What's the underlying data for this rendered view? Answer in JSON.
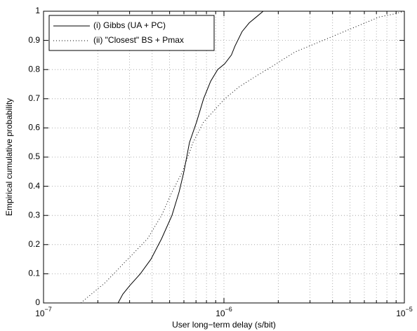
{
  "chart_data": {
    "type": "line",
    "xlabel": "User long−term delay (s/bit)",
    "ylabel": "Empirical cumulative probability",
    "xscale": "log",
    "grid": true,
    "legend_loc": "upper left",
    "xlim": [
      1e-07,
      1e-05
    ],
    "xticks": [
      {
        "value": 1e-07,
        "label": "10−7"
      },
      {
        "value": 1e-06,
        "label": "10−6"
      },
      {
        "value": 1e-05,
        "label": "10−5"
      }
    ],
    "xminorticks": [
      2e-07,
      3e-07,
      4e-07,
      5e-07,
      6e-07,
      7e-07,
      8e-07,
      9e-07,
      2e-06,
      3e-06,
      4e-06,
      5e-06,
      6e-06,
      7e-06,
      8e-06,
      9e-06
    ],
    "ylim": [
      0,
      1
    ],
    "yticks": [
      0,
      0.1,
      0.2,
      0.3,
      0.4,
      0.5,
      0.6,
      0.7,
      0.8,
      0.9,
      1
    ],
    "series": [
      {
        "name": "(i) Gibbs (UA + PC)",
        "color": "#000000",
        "style": "solid",
        "x": [
          2.59e-07,
          2.75e-07,
          3.01e-07,
          3.44e-07,
          3.94e-07,
          4.51e-07,
          5.15e-07,
          5.64e-07,
          6e-07,
          6.44e-07,
          7.05e-07,
          7.71e-07,
          8.44e-07,
          9.23e-07,
          1.01e-06,
          1.1e-06,
          1.15e-06,
          1.26e-06,
          1.38e-06,
          1.51e-06,
          1.65e-06,
          1.81e-06
        ],
        "values": [
          0,
          0.03,
          0.06,
          0.1,
          0.15,
          0.22,
          0.3,
          0.38,
          0.45,
          0.55,
          0.62,
          0.7,
          0.76,
          0.8,
          0.82,
          0.85,
          0.88,
          0.93,
          0.96,
          0.98,
          1.0,
          1.0
        ]
      },
      {
        "name": "(ii) \"Closest\" BS + Pmax",
        "color": "#000000",
        "style": "dotted",
        "x": [
          1.61e-07,
          1.84e-07,
          2.2e-07,
          2.63e-07,
          3.15e-07,
          3.77e-07,
          4.51e-07,
          5.15e-07,
          5.89e-07,
          6.74e-07,
          7.71e-07,
          8.83e-07,
          1.01e-06,
          1.21e-06,
          1.44e-06,
          1.73e-06,
          2.07e-06,
          2.47e-06,
          3.24e-06,
          4.23e-06,
          5.54e-06,
          7.24e-06,
          8.67e-06,
          1e-05
        ],
        "values": [
          0,
          0.03,
          0.07,
          0.12,
          0.17,
          0.22,
          0.3,
          0.38,
          0.45,
          0.55,
          0.62,
          0.66,
          0.7,
          0.74,
          0.77,
          0.8,
          0.83,
          0.86,
          0.89,
          0.92,
          0.95,
          0.98,
          0.99,
          1.0
        ]
      }
    ]
  }
}
